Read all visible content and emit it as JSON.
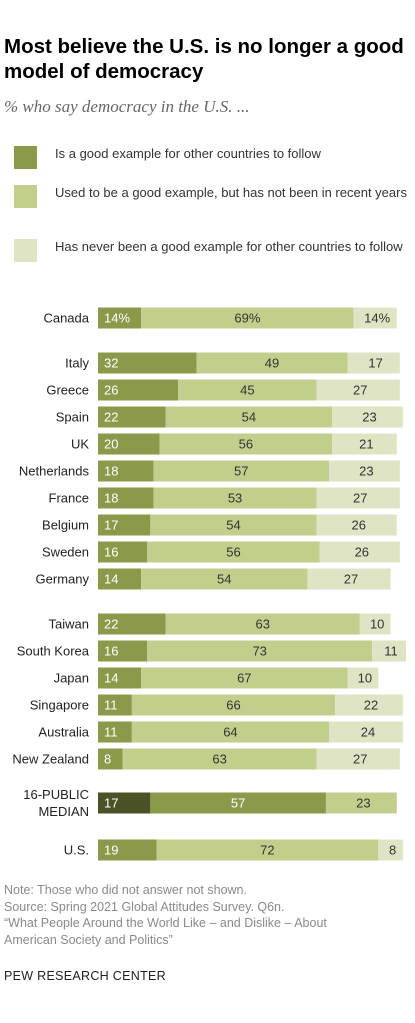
{
  "header": {
    "title": "Most believe the U.S. is no longer a good model of democracy",
    "subtitle": "% who say democracy in the U.S. ..."
  },
  "legend": [
    {
      "label": "Is a good example for other countries to follow",
      "color": "#8a9a4a"
    },
    {
      "label": "Used to be a good example, but has not been in recent years",
      "color": "#c2cf8c"
    },
    {
      "label": "Has never been a good example for other countries to follow",
      "color": "#dfe5c4"
    }
  ],
  "chart_data": {
    "type": "bar",
    "orientation": "horizontal",
    "stacked": true,
    "series_order": [
      "good",
      "used",
      "never"
    ],
    "colors": {
      "good": "#8a9a4a",
      "used": "#c2cf8c",
      "never": "#dfe5c4",
      "median_good": "#4b5228",
      "median_used": "#8a9a4a",
      "median_never": "#c2cf8c"
    },
    "rows": [
      {
        "category": "Canada",
        "good": 14,
        "used": 69,
        "never": 14,
        "labels": [
          "14%",
          "69%",
          "14%"
        ]
      },
      {
        "category": "Italy",
        "good": 32,
        "used": 49,
        "never": 17
      },
      {
        "category": "Greece",
        "good": 26,
        "used": 45,
        "never": 27
      },
      {
        "category": "Spain",
        "good": 22,
        "used": 54,
        "never": 23
      },
      {
        "category": "UK",
        "good": 20,
        "used": 56,
        "never": 21
      },
      {
        "category": "Netherlands",
        "good": 18,
        "used": 57,
        "never": 23
      },
      {
        "category": "France",
        "good": 18,
        "used": 53,
        "never": 27
      },
      {
        "category": "Belgium",
        "good": 17,
        "used": 54,
        "never": 26
      },
      {
        "category": "Sweden",
        "good": 16,
        "used": 56,
        "never": 26
      },
      {
        "category": "Germany",
        "good": 14,
        "used": 54,
        "never": 27
      },
      {
        "category": "Taiwan",
        "good": 22,
        "used": 63,
        "never": 10
      },
      {
        "category": "South Korea",
        "good": 16,
        "used": 73,
        "never": 11
      },
      {
        "category": "Japan",
        "good": 14,
        "used": 67,
        "never": 10
      },
      {
        "category": "Singapore",
        "good": 11,
        "used": 66,
        "never": 22
      },
      {
        "category": "Australia",
        "good": 11,
        "used": 64,
        "never": 24
      },
      {
        "category": "New Zealand",
        "good": 8,
        "used": 63,
        "never": 27
      },
      {
        "category": "16-PUBLIC MEDIAN",
        "category_lines": [
          "16-PUBLIC",
          "MEDIAN"
        ],
        "good": 17,
        "used": 57,
        "never": 23,
        "median": true
      },
      {
        "category": "U.S.",
        "good": 19,
        "used": 72,
        "never": 8
      }
    ],
    "xlim": [
      0,
      100
    ]
  },
  "footer": {
    "note": "Note: Those who did not answer not shown.",
    "source": "Source: Spring 2021 Global Attitudes Survey. Q6n.",
    "report_line1": "“What People Around the World Like – and Dislike – About",
    "report_line2": "American Society and Politics”",
    "brand": "PEW RESEARCH CENTER"
  }
}
